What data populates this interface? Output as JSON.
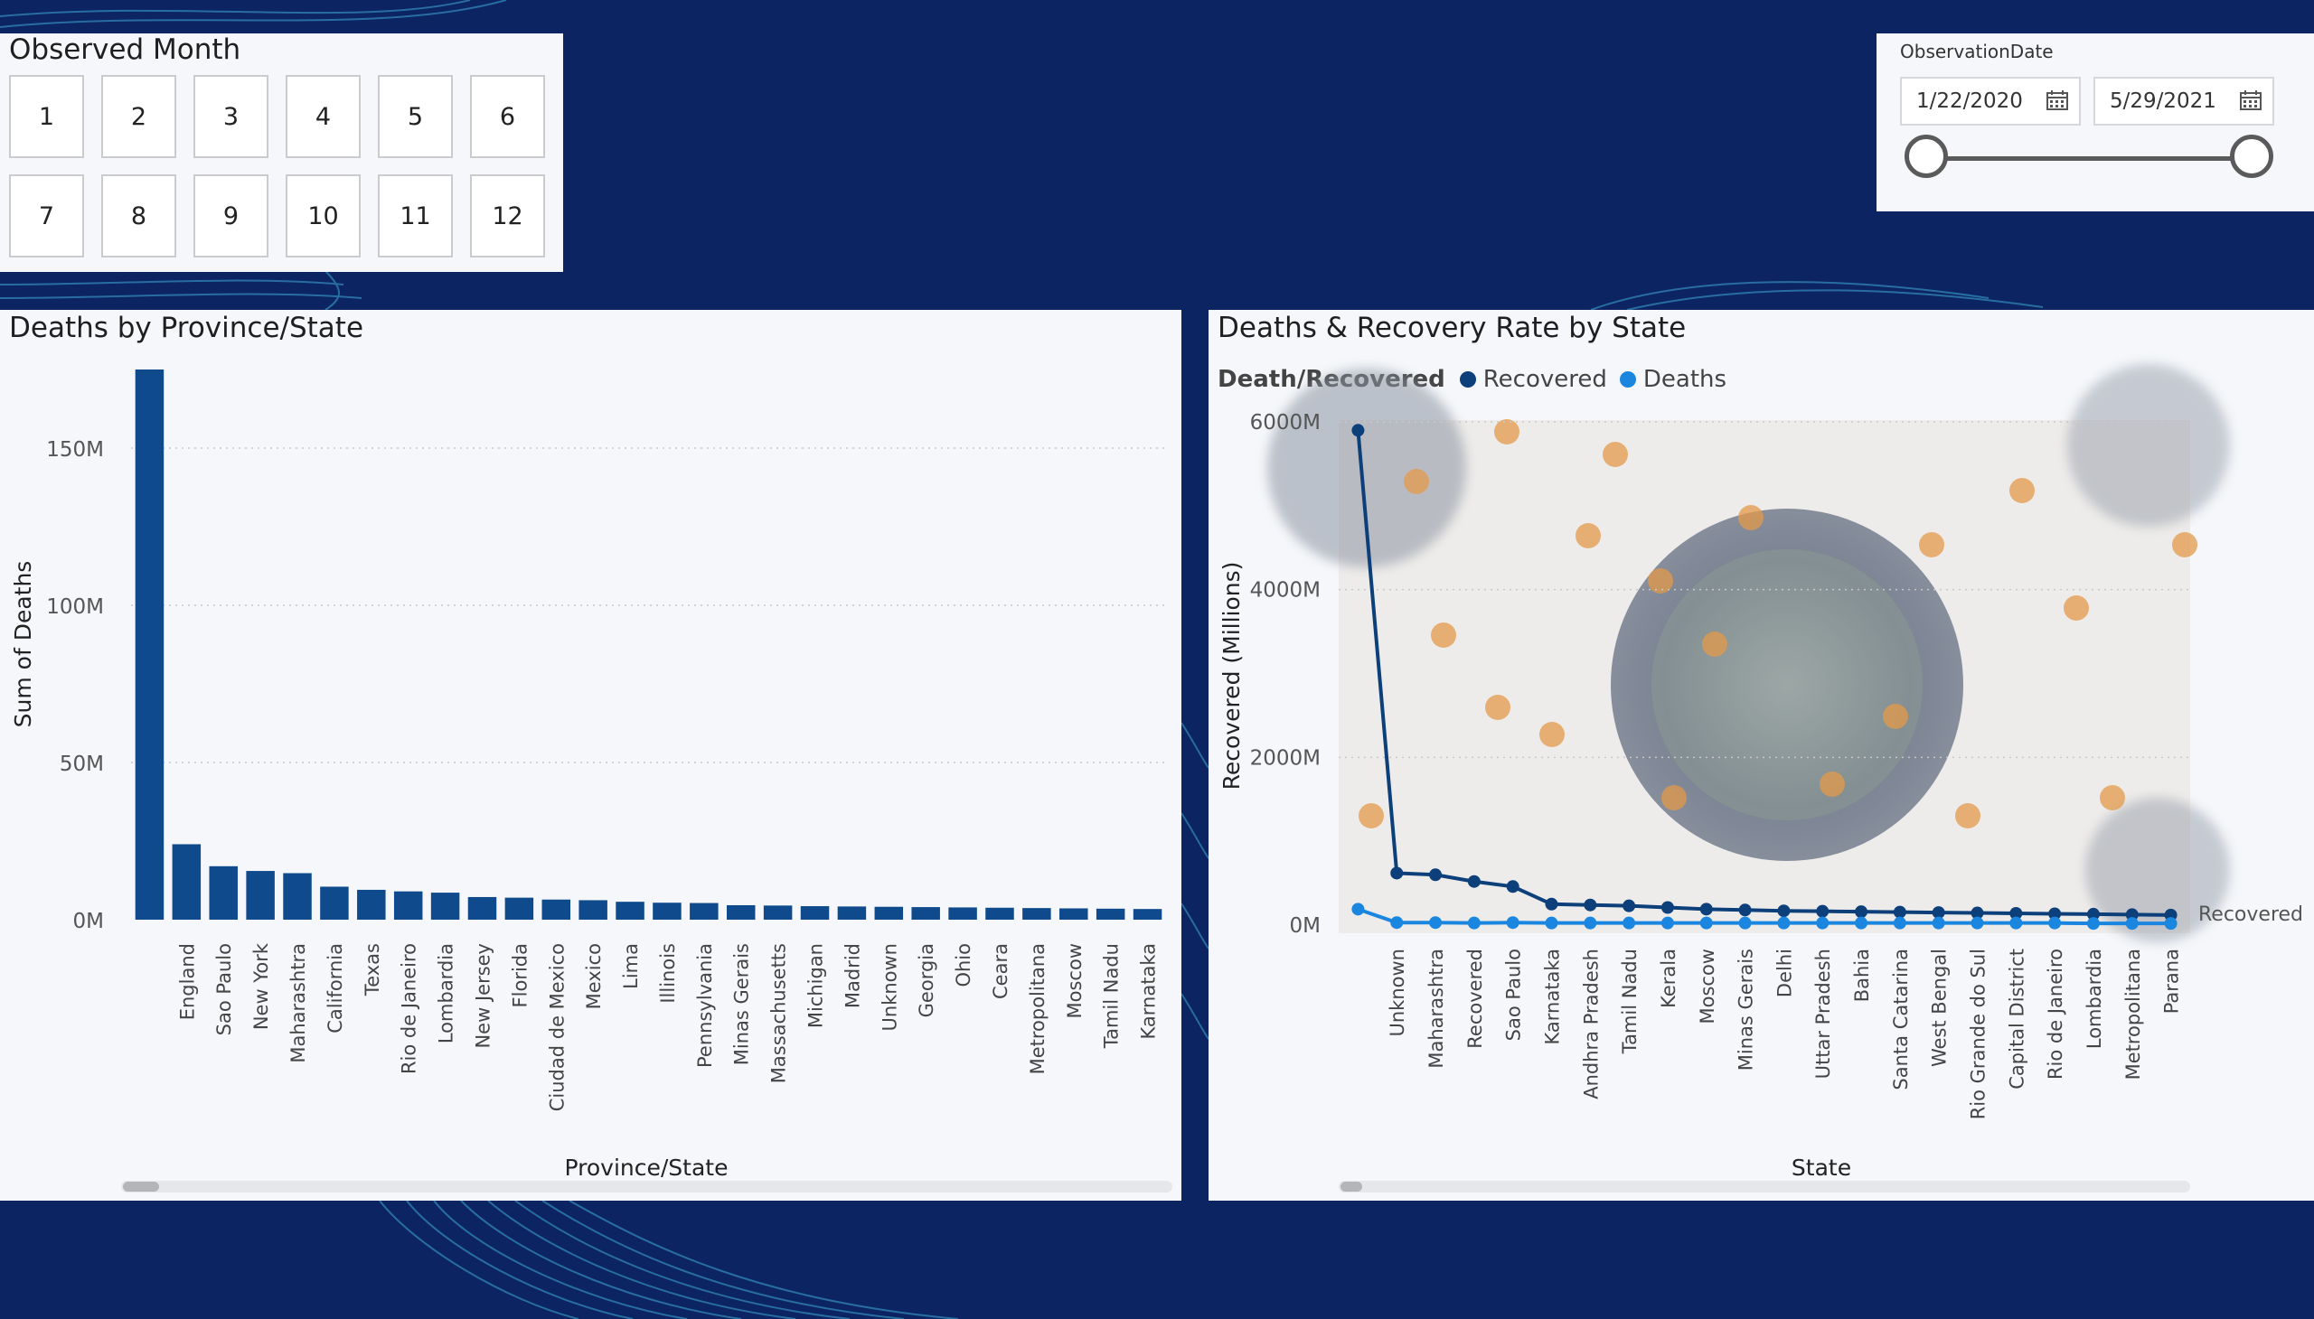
{
  "month_slicer": {
    "title": "Observed Month",
    "months": [
      "1",
      "2",
      "3",
      "4",
      "5",
      "6",
      "7",
      "8",
      "9",
      "10",
      "11",
      "12"
    ]
  },
  "date_slicer": {
    "title": "ObservationDate",
    "start": "1/22/2020",
    "end": "5/29/2021",
    "calendar_icon": "calendar-icon"
  },
  "colors": {
    "background": "#0c2461",
    "bar": "#0f4b8c",
    "recovered": "#0d3f7a",
    "deaths": "#1a86e0"
  },
  "bar_chart": {
    "title": "Deaths by Province/State",
    "chart_data": {
      "type": "bar",
      "xlabel": "Province/State",
      "ylabel": "Sum of Deaths",
      "ylim": [
        0,
        175000000
      ],
      "yticks": [
        0,
        50000000,
        100000000,
        150000000
      ],
      "ytick_labels": [
        "0M",
        "50M",
        "100M",
        "150M"
      ],
      "grid": true,
      "categories": [
        "",
        "England",
        "Sao Paulo",
        "New York",
        "Maharashtra",
        "California",
        "Texas",
        "Rio de Janeiro",
        "Lombardia",
        "New Jersey",
        "Florida",
        "Ciudad de Mexico",
        "Mexico",
        "Lima",
        "Illinois",
        "Pennsylvania",
        "Minas Gerais",
        "Massachusetts",
        "Michigan",
        "Madrid",
        "Unknown",
        "Georgia",
        "Ohio",
        "Ceara",
        "Metropolitana",
        "Moscow",
        "Tamil Nadu",
        "Karnataka"
      ],
      "values": [
        175000000,
        24000000,
        17000000,
        15500000,
        14800000,
        10500000,
        9500000,
        9000000,
        8600000,
        7200000,
        7000000,
        6400000,
        6200000,
        5700000,
        5400000,
        5300000,
        4600000,
        4500000,
        4300000,
        4200000,
        4100000,
        4000000,
        3900000,
        3800000,
        3700000,
        3600000,
        3500000,
        3400000
      ]
    }
  },
  "line_chart": {
    "title": "Deaths & Recovery Rate by State",
    "legend": {
      "title": "Death/Recovered",
      "placement": "top-left",
      "items": [
        "Recovered",
        "Deaths"
      ]
    },
    "end_label": "Recovered",
    "chart_data": {
      "type": "line",
      "xlabel": "State",
      "ylabel": "Recovered (Millions)",
      "ylim": [
        0,
        6000
      ],
      "yticks": [
        0,
        2000,
        4000,
        6000
      ],
      "ytick_labels": [
        "0M",
        "2000M",
        "4000M",
        "6000M"
      ],
      "grid": true,
      "categories": [
        "",
        "Unknown",
        "Maharashtra",
        "Recovered",
        "Sao Paulo",
        "Karnataka",
        "Andhra Pradesh",
        "Tamil Nadu",
        "Kerala",
        "Moscow",
        "Minas Gerais",
        "Delhi",
        "Uttar Pradesh",
        "Bahia",
        "Santa Catarina",
        "West Bengal",
        "Rio Grande do Sul",
        "Capital District",
        "Rio de Janeiro",
        "Lombardia",
        "Metropolitana",
        "Parana"
      ],
      "series": [
        {
          "name": "Recovered",
          "values": [
            5900,
            620,
            600,
            520,
            460,
            250,
            240,
            230,
            210,
            190,
            180,
            170,
            165,
            160,
            155,
            150,
            145,
            140,
            135,
            130,
            125,
            120
          ]
        },
        {
          "name": "Deaths",
          "values": [
            190,
            30,
            30,
            25,
            30,
            25,
            25,
            25,
            25,
            25,
            25,
            25,
            25,
            25,
            25,
            25,
            25,
            25,
            25,
            20,
            20,
            20
          ]
        }
      ]
    }
  }
}
